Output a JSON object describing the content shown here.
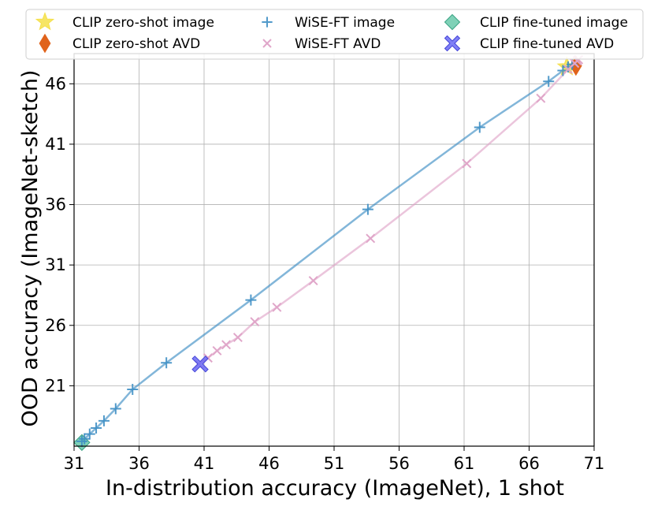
{
  "chart_data": {
    "type": "scatter",
    "title": "",
    "xlabel": "In-distribution accuracy (ImageNet), 1 shot",
    "ylabel": "OOD accuracy (ImageNet-sketch)",
    "xlim": [
      31,
      71
    ],
    "ylim": [
      16,
      48.5
    ],
    "grid": true,
    "legend_position": "top",
    "xticks": [
      31,
      36,
      41,
      46,
      51,
      56,
      61,
      66,
      71
    ],
    "yticks": [
      21,
      26,
      31,
      36,
      41,
      46
    ],
    "series": [
      {
        "name": "CLIP zero-shot image",
        "marker": "star",
        "color": "#f5e04a",
        "points": [
          [
            68.9,
            47.4
          ]
        ]
      },
      {
        "name": "CLIP zero-shot AVD",
        "marker": "thin_diamond",
        "color": "#e0631b",
        "points": [
          [
            69.6,
            47.5
          ]
        ]
      },
      {
        "name": "CLIP fine-tuned image",
        "marker": "diamond",
        "color": "#5fc6a5",
        "points": [
          [
            31.6,
            16.3
          ]
        ]
      },
      {
        "name": "WiSE-FT image",
        "marker": "plus",
        "color": "#3f8fc4",
        "line": true,
        "points": [
          [
            31.6,
            16.4
          ],
          [
            31.8,
            16.6
          ],
          [
            32.2,
            17.0
          ],
          [
            32.7,
            17.5
          ],
          [
            33.3,
            18.1
          ],
          [
            34.2,
            19.1
          ],
          [
            35.5,
            20.7
          ],
          [
            38.1,
            22.9
          ],
          [
            44.6,
            28.1
          ],
          [
            53.6,
            35.6
          ],
          [
            62.2,
            42.4
          ],
          [
            67.5,
            46.2
          ],
          [
            68.6,
            47.1
          ],
          [
            69.0,
            47.4
          ],
          [
            69.3,
            47.6
          ]
        ]
      },
      {
        "name": "WiSE-FT AVD",
        "marker": "x",
        "color": "#e0a6c9",
        "line": true,
        "points": [
          [
            40.6,
            22.8
          ],
          [
            41.3,
            23.3
          ],
          [
            42.0,
            23.9
          ],
          [
            42.7,
            24.4
          ],
          [
            43.6,
            25.0
          ],
          [
            44.9,
            26.3
          ],
          [
            46.6,
            27.5
          ],
          [
            49.4,
            29.7
          ],
          [
            53.8,
            33.2
          ],
          [
            61.2,
            39.4
          ],
          [
            66.9,
            44.8
          ],
          [
            69.0,
            47.2
          ],
          [
            69.5,
            47.7
          ],
          [
            69.7,
            47.9
          ],
          [
            69.8,
            48.0
          ]
        ]
      },
      {
        "name": "CLIP fine-tuned AVD",
        "marker": "X",
        "color": "#6a6af5",
        "points": [
          [
            40.7,
            22.8
          ]
        ]
      }
    ]
  }
}
